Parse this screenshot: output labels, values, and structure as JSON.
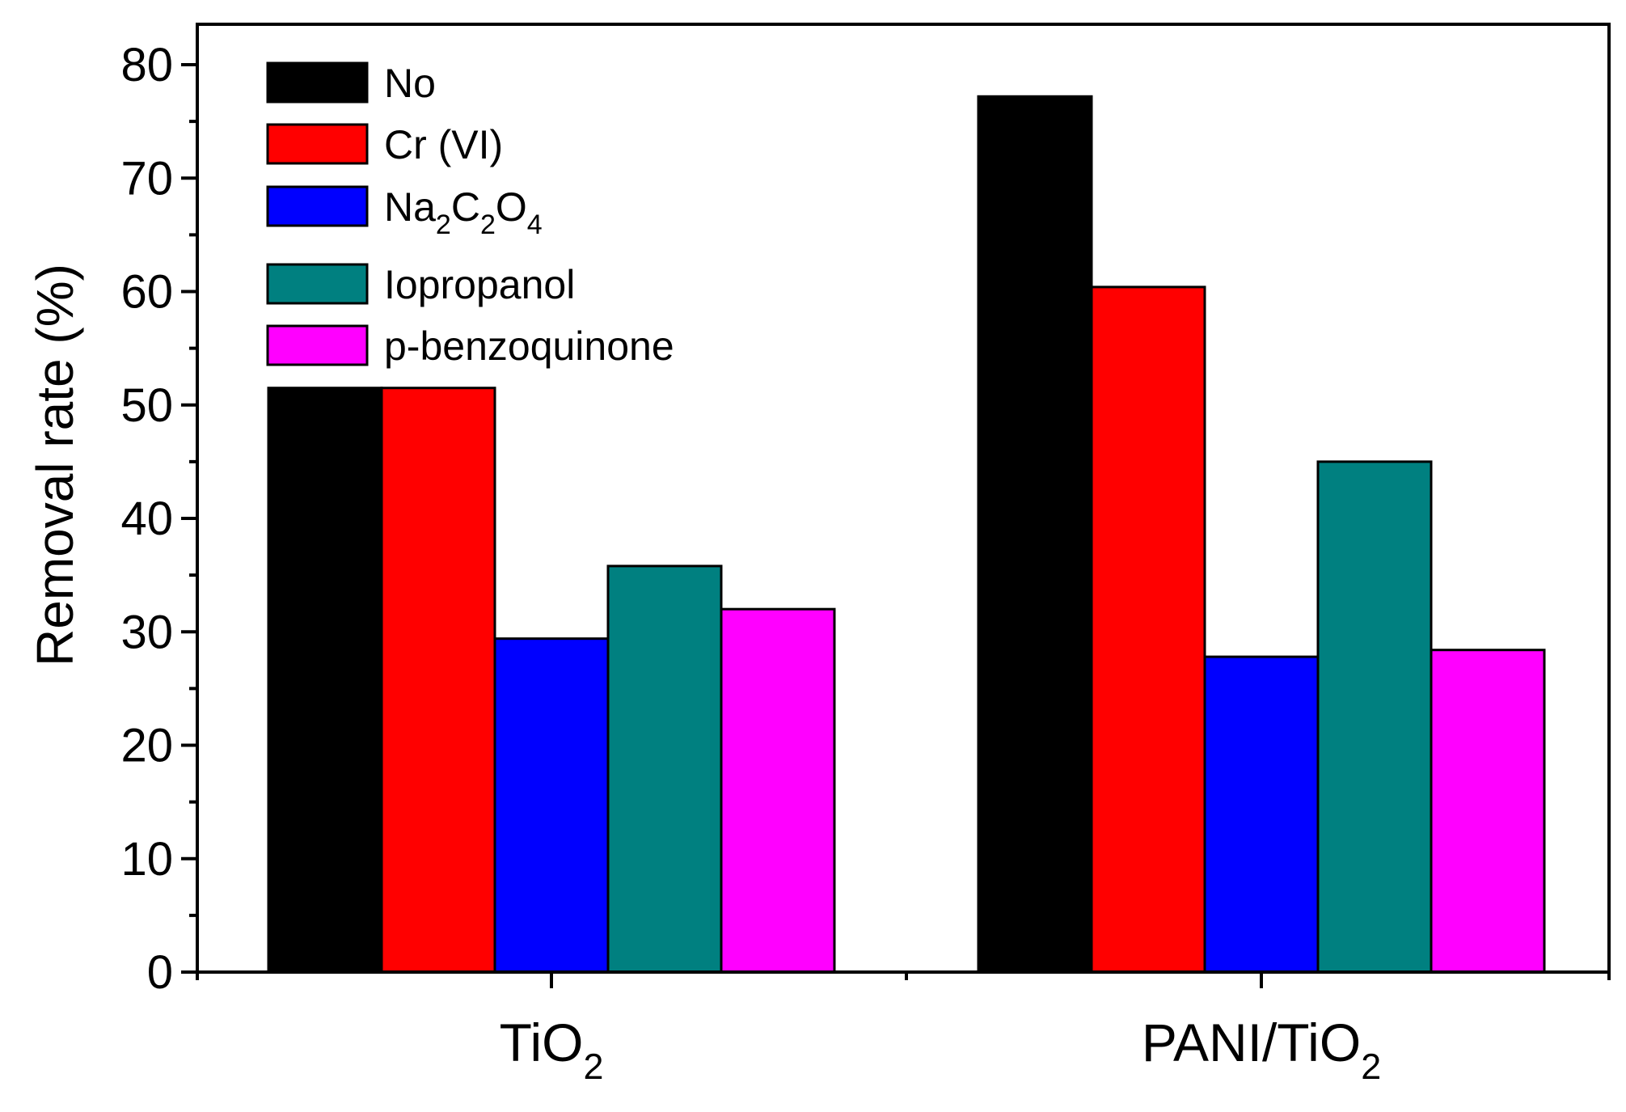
{
  "chart_data": {
    "type": "bar",
    "categories": [
      "TiO",
      "PANI/TiO"
    ],
    "category_subscripts": [
      "2",
      "2"
    ],
    "series": [
      {
        "name": "No",
        "values": [
          51.5,
          77.2
        ],
        "color": "#000000"
      },
      {
        "name": "Cr (VI)",
        "values": [
          51.5,
          60.4
        ],
        "color": "#ff0000"
      },
      {
        "name": "Na2C2O4",
        "values": [
          29.4,
          27.8
        ],
        "color": "#0000ff"
      },
      {
        "name": "Iopropanol",
        "values": [
          35.8,
          45.0
        ],
        "color": "#008080"
      },
      {
        "name": "p-benzoquinone",
        "values": [
          32.0,
          28.4
        ],
        "color": "#ff00ff"
      }
    ],
    "legend_label_parts": [
      [
        {
          "t": "No"
        }
      ],
      [
        {
          "t": "Cr (VI)"
        }
      ],
      [
        {
          "t": "Na"
        },
        {
          "t": "2",
          "sub": true
        },
        {
          "t": "C"
        },
        {
          "t": "2",
          "sub": true
        },
        {
          "t": "O"
        },
        {
          "t": "4",
          "sub": true
        }
      ],
      [
        {
          "t": "Iopropanol"
        }
      ],
      [
        {
          "t": "p-benzoquinone"
        }
      ]
    ],
    "xlabel": "",
    "ylabel": "Removal rate (%)",
    "ylim": [
      0,
      80
    ],
    "yticks": [
      "0",
      "10",
      "20",
      "30",
      "40",
      "50",
      "60",
      "70",
      "80"
    ],
    "legend_position": "top-left",
    "grid": false
  }
}
